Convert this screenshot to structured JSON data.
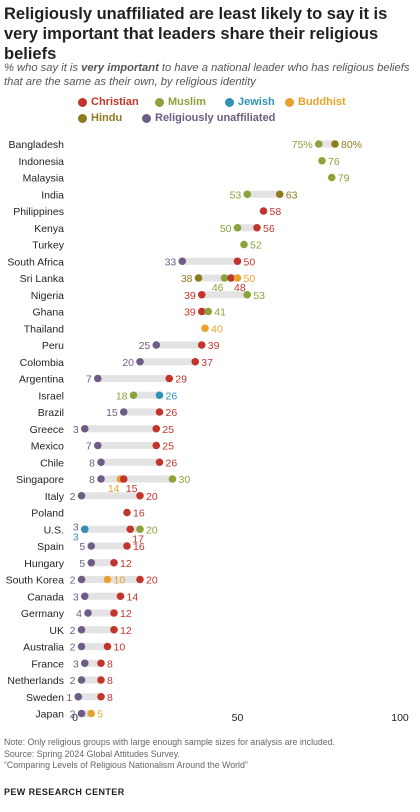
{
  "header": {
    "title": "Religiously unaffiliated are least likely to say it is very important that leaders share their religious beliefs",
    "subtitle_pre": "% who say it is ",
    "subtitle_bold": "very important",
    "subtitle_post": " to have a national leader who has religious beliefs that are the same as their own, by religious identity"
  },
  "colors": {
    "Christian": "#c1352d",
    "Muslim": "#8aa33a",
    "Jewish": "#3192b6",
    "Buddhist": "#e8a22c",
    "Hindu": "#8f7a1f",
    "Religiously unaffiliated": "#6e5c86",
    "bar": "#e3e3e3"
  },
  "legend": {
    "items": [
      "Christian",
      "Muslim",
      "Jewish",
      "Buddhist",
      "Hindu",
      "Religiously unaffiliated"
    ]
  },
  "chart_data": {
    "type": "dot",
    "xlim": [
      0,
      100
    ],
    "x_ticks": [
      0,
      50,
      100
    ],
    "series": [
      "Christian",
      "Muslim",
      "Jewish",
      "Buddhist",
      "Hindu",
      "Religiously unaffiliated"
    ],
    "rows": [
      {
        "country": "Bangladesh",
        "values": {
          "Muslim": 75,
          "Hindu": 80
        }
      },
      {
        "country": "Indonesia",
        "values": {
          "Muslim": 76
        }
      },
      {
        "country": "Malaysia",
        "values": {
          "Muslim": 79
        }
      },
      {
        "country": "India",
        "values": {
          "Muslim": 53,
          "Hindu": 63
        }
      },
      {
        "country": "Philippines",
        "values": {
          "Christian": 58
        }
      },
      {
        "country": "Kenya",
        "values": {
          "Muslim": 50,
          "Christian": 56
        }
      },
      {
        "country": "Turkey",
        "values": {
          "Muslim": 52
        }
      },
      {
        "country": "South Africa",
        "values": {
          "Religiously unaffiliated": 33,
          "Christian": 50
        }
      },
      {
        "country": "Sri Lanka",
        "values": {
          "Hindu": 38,
          "Muslim": 46,
          "Christian": 48,
          "Buddhist": 50
        }
      },
      {
        "country": "Nigeria",
        "values": {
          "Christian": 39,
          "Muslim": 53
        }
      },
      {
        "country": "Ghana",
        "values": {
          "Christian": 39,
          "Muslim": 41
        }
      },
      {
        "country": "Thailand",
        "values": {
          "Buddhist": 40
        }
      },
      {
        "country": "Peru",
        "values": {
          "Religiously unaffiliated": 25,
          "Christian": 39
        }
      },
      {
        "country": "Colombia",
        "values": {
          "Religiously unaffiliated": 20,
          "Christian": 37
        }
      },
      {
        "country": "Argentina",
        "values": {
          "Religiously unaffiliated": 7,
          "Christian": 29
        }
      },
      {
        "country": "Israel",
        "values": {
          "Muslim": 18,
          "Jewish": 26
        }
      },
      {
        "country": "Brazil",
        "values": {
          "Religiously unaffiliated": 15,
          "Christian": 26
        }
      },
      {
        "country": "Greece",
        "values": {
          "Religiously unaffiliated": 3,
          "Christian": 25
        }
      },
      {
        "country": "Mexico",
        "values": {
          "Religiously unaffiliated": 7,
          "Christian": 25
        }
      },
      {
        "country": "Chile",
        "values": {
          "Religiously unaffiliated": 8,
          "Christian": 26
        }
      },
      {
        "country": "Singapore",
        "values": {
          "Religiously unaffiliated": 8,
          "Buddhist": 14,
          "Christian": 15,
          "Muslim": 30
        }
      },
      {
        "country": "Italy",
        "values": {
          "Religiously unaffiliated": 2,
          "Christian": 20
        }
      },
      {
        "country": "Poland",
        "values": {
          "Christian": 16
        }
      },
      {
        "country": "U.S.",
        "values": {
          "Religiously unaffiliated": 3,
          "Jewish": 3,
          "Christian": 17,
          "Muslim": 20
        }
      },
      {
        "country": "Spain",
        "values": {
          "Religiously unaffiliated": 5,
          "Christian": 16
        }
      },
      {
        "country": "Hungary",
        "values": {
          "Religiously unaffiliated": 5,
          "Christian": 12
        }
      },
      {
        "country": "South Korea",
        "values": {
          "Religiously unaffiliated": 2,
          "Buddhist": 10,
          "Christian": 20
        }
      },
      {
        "country": "Canada",
        "values": {
          "Religiously unaffiliated": 3,
          "Christian": 14
        }
      },
      {
        "country": "Germany",
        "values": {
          "Religiously unaffiliated": 4,
          "Christian": 12
        }
      },
      {
        "country": "UK",
        "values": {
          "Religiously unaffiliated": 2,
          "Christian": 12
        }
      },
      {
        "country": "Australia",
        "values": {
          "Religiously unaffiliated": 2,
          "Christian": 10
        }
      },
      {
        "country": "France",
        "values": {
          "Religiously unaffiliated": 3,
          "Christian": 8
        }
      },
      {
        "country": "Netherlands",
        "values": {
          "Religiously unaffiliated": 2,
          "Christian": 8
        }
      },
      {
        "country": "Sweden",
        "values": {
          "Religiously unaffiliated": 1,
          "Christian": 8
        }
      },
      {
        "country": "Japan",
        "values": {
          "Religiously unaffiliated": 2,
          "Buddhist": 5
        }
      }
    ]
  },
  "notes": {
    "note": "Note: Only religious groups with large enough sample sizes for analysis are included.",
    "source": "Source: Spring 2024 Global Attitudes Survey.",
    "report": "“Comparing Levels of Religious Nationalism Around the World”"
  },
  "brand": "PEW RESEARCH CENTER"
}
